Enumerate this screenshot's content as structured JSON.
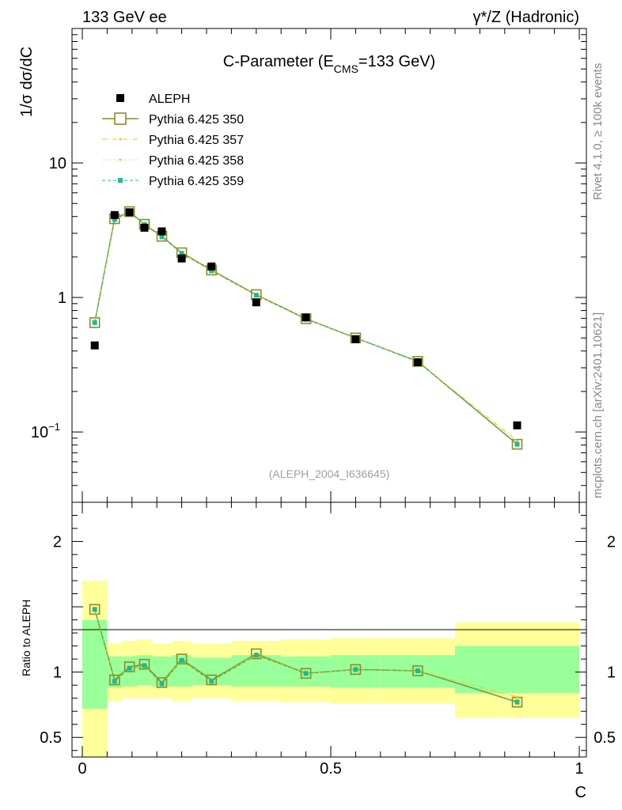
{
  "header": {
    "left": "133 GeV ee",
    "right": "γ*/Z (Hadronic)"
  },
  "side_labels": {
    "rivet": "Rivet 4.1.0, ≥ 100k events",
    "mcplots": "mcplots.cern.ch [arXiv:2401.10621]"
  },
  "colors": {
    "data": "#000000",
    "p350": "#8b8b2b",
    "p357": "#ffc000",
    "p358": "#d6d630",
    "p359": "#1abc8c",
    "band_outer": "#ffff99",
    "band_inner": "#99ff99"
  },
  "chart_data": [
    {
      "id": "main",
      "type": "scatter",
      "title_main": "C-Parameter (E",
      "title_sub": "CMS",
      "title_tail": "=133 GeV)",
      "ylabel": "1/σ  dσ/dC",
      "yscale": "log",
      "ylim": [
        0.03,
        100
      ],
      "xlim": [
        0,
        1
      ],
      "yticks": [
        {
          "v": 10,
          "label": "10"
        },
        {
          "v": 1,
          "label": "1"
        },
        {
          "v": 0.1,
          "label": "10",
          "sup": "−1"
        }
      ],
      "analysis_tag": "(ALEPH_2004_I636645)",
      "legend": [
        {
          "key": "data",
          "label": "ALEPH"
        },
        {
          "key": "p350",
          "label": "Pythia 6.425 350"
        },
        {
          "key": "p357",
          "label": "Pythia 6.425 357"
        },
        {
          "key": "p358",
          "label": "Pythia 6.425 358"
        },
        {
          "key": "p359",
          "label": "Pythia 6.425 359"
        }
      ],
      "bins": [
        [
          0.0,
          0.05
        ],
        [
          0.05,
          0.08
        ],
        [
          0.08,
          0.11
        ],
        [
          0.11,
          0.14
        ],
        [
          0.14,
          0.18
        ],
        [
          0.18,
          0.22
        ],
        [
          0.22,
          0.3
        ],
        [
          0.3,
          0.4
        ],
        [
          0.4,
          0.5
        ],
        [
          0.5,
          0.6
        ],
        [
          0.6,
          0.75
        ],
        [
          0.75,
          1.0
        ]
      ],
      "x": [
        0.025,
        0.065,
        0.095,
        0.125,
        0.16,
        0.2,
        0.26,
        0.35,
        0.45,
        0.55,
        0.675,
        0.875
      ],
      "data": [
        0.44,
        4.1,
        4.3,
        3.3,
        3.1,
        1.95,
        1.7,
        0.92,
        0.71,
        0.49,
        0.33,
        0.112
      ],
      "series": [
        {
          "name": "Pythia 6.425 350",
          "key": "p350",
          "values": [
            0.65,
            3.85,
            4.35,
            3.5,
            2.85,
            2.15,
            1.6,
            1.05,
            0.695,
            0.5,
            0.335,
            0.081
          ]
        },
        {
          "name": "Pythia 6.425 357",
          "key": "p357",
          "values": [
            0.65,
            3.8,
            4.3,
            3.48,
            2.82,
            2.13,
            1.58,
            1.04,
            0.69,
            0.5,
            0.333,
            0.086
          ]
        },
        {
          "name": "Pythia 6.425 358",
          "key": "p358",
          "values": [
            0.65,
            3.82,
            4.32,
            3.49,
            2.83,
            2.14,
            1.59,
            1.05,
            0.692,
            0.5,
            0.334,
            0.084
          ]
        },
        {
          "name": "Pythia 6.425 359",
          "key": "p359",
          "values": [
            0.65,
            3.8,
            4.3,
            3.48,
            2.82,
            2.13,
            1.58,
            1.04,
            0.69,
            0.5,
            0.333,
            0.081
          ]
        }
      ]
    },
    {
      "id": "ratio",
      "type": "line",
      "ylabel": "Ratio to ALEPH",
      "xlabel": "C",
      "ylim": [
        0.35,
        2.3
      ],
      "xlim": [
        0,
        1
      ],
      "yticks": [
        {
          "v": 2,
          "label": "2"
        },
        {
          "v": 1,
          "label": "1"
        },
        {
          "v": 0.5,
          "label": "0.5"
        }
      ],
      "xticks": [
        {
          "v": 0,
          "label": "0"
        },
        {
          "v": 0.5,
          "label": "0.5"
        },
        {
          "v": 1,
          "label": "1"
        }
      ],
      "band_outer": [
        [
          0.0,
          1.7
        ],
        [
          0.78,
          1.22
        ],
        [
          0.8,
          1.24
        ],
        [
          0.8,
          1.25
        ],
        [
          0.8,
          1.22
        ],
        [
          0.78,
          1.24
        ],
        [
          0.8,
          1.22
        ],
        [
          0.78,
          1.24
        ],
        [
          0.77,
          1.25
        ],
        [
          0.76,
          1.26
        ],
        [
          0.76,
          1.26
        ],
        [
          0.65,
          1.38
        ]
      ],
      "band_inner": [
        [
          0.72,
          1.4
        ],
        [
          0.88,
          1.12
        ],
        [
          0.89,
          1.12
        ],
        [
          0.9,
          1.13
        ],
        [
          0.89,
          1.12
        ],
        [
          0.89,
          1.13
        ],
        [
          0.9,
          1.11
        ],
        [
          0.89,
          1.13
        ],
        [
          0.89,
          1.12
        ],
        [
          0.88,
          1.13
        ],
        [
          0.88,
          1.13
        ],
        [
          0.84,
          1.2
        ]
      ],
      "series": [
        {
          "name": "Pythia 6.425 350",
          "key": "p350",
          "values": [
            1.48,
            0.94,
            1.04,
            1.06,
            0.92,
            1.1,
            0.94,
            1.14,
            0.99,
            1.02,
            1.01,
            0.77
          ]
        },
        {
          "name": "Pythia 6.425 357",
          "key": "p357",
          "values": [
            1.48,
            0.93,
            1.03,
            1.05,
            0.91,
            1.09,
            0.93,
            1.13,
            0.99,
            1.02,
            1.01,
            0.81
          ]
        },
        {
          "name": "Pythia 6.425 358",
          "key": "p358",
          "values": [
            1.48,
            0.93,
            1.04,
            1.05,
            0.91,
            1.1,
            0.93,
            1.14,
            0.99,
            1.02,
            1.01,
            0.79
          ]
        },
        {
          "name": "Pythia 6.425 359",
          "key": "p359",
          "values": [
            1.48,
            0.93,
            1.03,
            1.05,
            0.91,
            1.09,
            0.93,
            1.13,
            0.99,
            1.02,
            1.01,
            0.77
          ]
        }
      ]
    }
  ]
}
